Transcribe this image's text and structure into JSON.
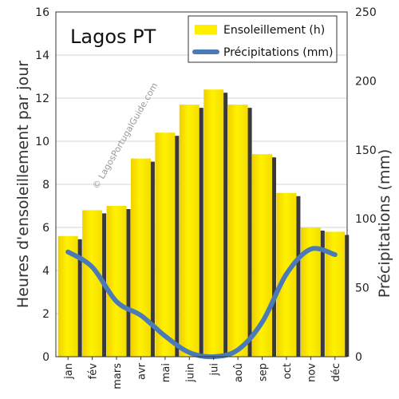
{
  "chart_data": {
    "type": "bar",
    "title": "Lagos PT",
    "watermark": "© LagosPortugalGuide.com",
    "categories": [
      "jan",
      "fév",
      "mars",
      "avr",
      "mai",
      "juin",
      "jui",
      "aoû",
      "sep",
      "oct",
      "nov",
      "déc"
    ],
    "ylabel_left": "Heures d'ensoleillement par jour",
    "ylabel_right": "Précipitations (mm)",
    "ylim_left": [
      0,
      16
    ],
    "yticks_left": [
      0,
      2,
      4,
      6,
      8,
      10,
      12,
      14,
      16
    ],
    "ylim_right": [
      0,
      250
    ],
    "yticks_right": [
      0,
      50,
      100,
      150,
      200,
      250
    ],
    "grid": true,
    "legend_position": "top-right",
    "series": [
      {
        "name": "Ensoleillement (h)",
        "type": "bar",
        "axis": "left",
        "color": "#ffee00",
        "values": [
          5.6,
          6.8,
          7.0,
          9.2,
          10.4,
          11.7,
          12.4,
          11.7,
          9.4,
          7.6,
          6.0,
          5.8
        ]
      },
      {
        "name": "Précipitations (mm)",
        "type": "line",
        "axis": "right",
        "color": "#4a7ab8",
        "values": [
          76,
          65,
          40,
          30,
          15,
          3,
          0,
          5,
          25,
          60,
          78,
          74
        ]
      }
    ]
  }
}
